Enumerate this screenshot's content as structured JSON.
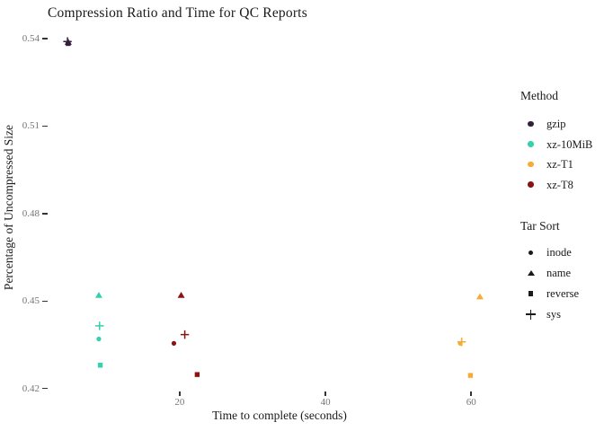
{
  "chart_data": {
    "type": "scatter",
    "title": "Compression Ratio and Time for QC Reports",
    "xlabel": "Time to complete (seconds)",
    "ylabel": "Percentage of Uncompressed Size",
    "x_ticks": [
      20,
      40,
      60
    ],
    "y_ticks": [
      0.54,
      0.51,
      0.48,
      0.45,
      0.42
    ],
    "xlim": [
      2.0,
      65.4
    ],
    "ylim": [
      0.4193,
      0.5446
    ],
    "grid": false,
    "background": "#ffffff",
    "tick_label_color": "#767676",
    "legend_position": "right",
    "legend": {
      "method": {
        "title": "Method",
        "items": [
          {
            "label": "gzip",
            "color": "#32203E"
          },
          {
            "label": "xz-10MiB",
            "color": "#33D1AC"
          },
          {
            "label": "xz-T1",
            "color": "#F5AB35"
          },
          {
            "label": "xz-T8",
            "color": "#8B1413"
          }
        ]
      },
      "tar_sort": {
        "title": "Tar Sort",
        "items": [
          {
            "label": "inode",
            "shape": "circle"
          },
          {
            "label": "name",
            "shape": "triangle"
          },
          {
            "label": "reverse",
            "shape": "square"
          },
          {
            "label": "sys",
            "shape": "plus"
          }
        ]
      }
    },
    "points": [
      {
        "method": "gzip",
        "sort": "inode",
        "x": 4.7,
        "y": 0.5385
      },
      {
        "method": "gzip",
        "sort": "name",
        "x": 4.7,
        "y": 0.5388
      },
      {
        "method": "gzip",
        "sort": "reverse",
        "x": 4.7,
        "y": 0.5383
      },
      {
        "method": "gzip",
        "sort": "sys",
        "x": 4.6,
        "y": 0.539
      },
      {
        "method": "xz-10MiB",
        "sort": "inode",
        "x": 8.9,
        "y": 0.437
      },
      {
        "method": "xz-10MiB",
        "sort": "name",
        "x": 8.9,
        "y": 0.452
      },
      {
        "method": "xz-10MiB",
        "sort": "reverse",
        "x": 9.1,
        "y": 0.428
      },
      {
        "method": "xz-10MiB",
        "sort": "sys",
        "x": 9.0,
        "y": 0.4415
      },
      {
        "method": "xz-T8",
        "sort": "inode",
        "x": 19.2,
        "y": 0.4355
      },
      {
        "method": "xz-T8",
        "sort": "name",
        "x": 20.2,
        "y": 0.452
      },
      {
        "method": "xz-T8",
        "sort": "reverse",
        "x": 22.4,
        "y": 0.4248
      },
      {
        "method": "xz-T8",
        "sort": "sys",
        "x": 20.7,
        "y": 0.4385
      },
      {
        "method": "xz-T1",
        "sort": "inode",
        "x": 58.5,
        "y": 0.4355
      },
      {
        "method": "xz-T1",
        "sort": "name",
        "x": 61.2,
        "y": 0.4515
      },
      {
        "method": "xz-T1",
        "sort": "reverse",
        "x": 59.9,
        "y": 0.4245
      },
      {
        "method": "xz-T1",
        "sort": "sys",
        "x": 58.7,
        "y": 0.436
      }
    ]
  }
}
